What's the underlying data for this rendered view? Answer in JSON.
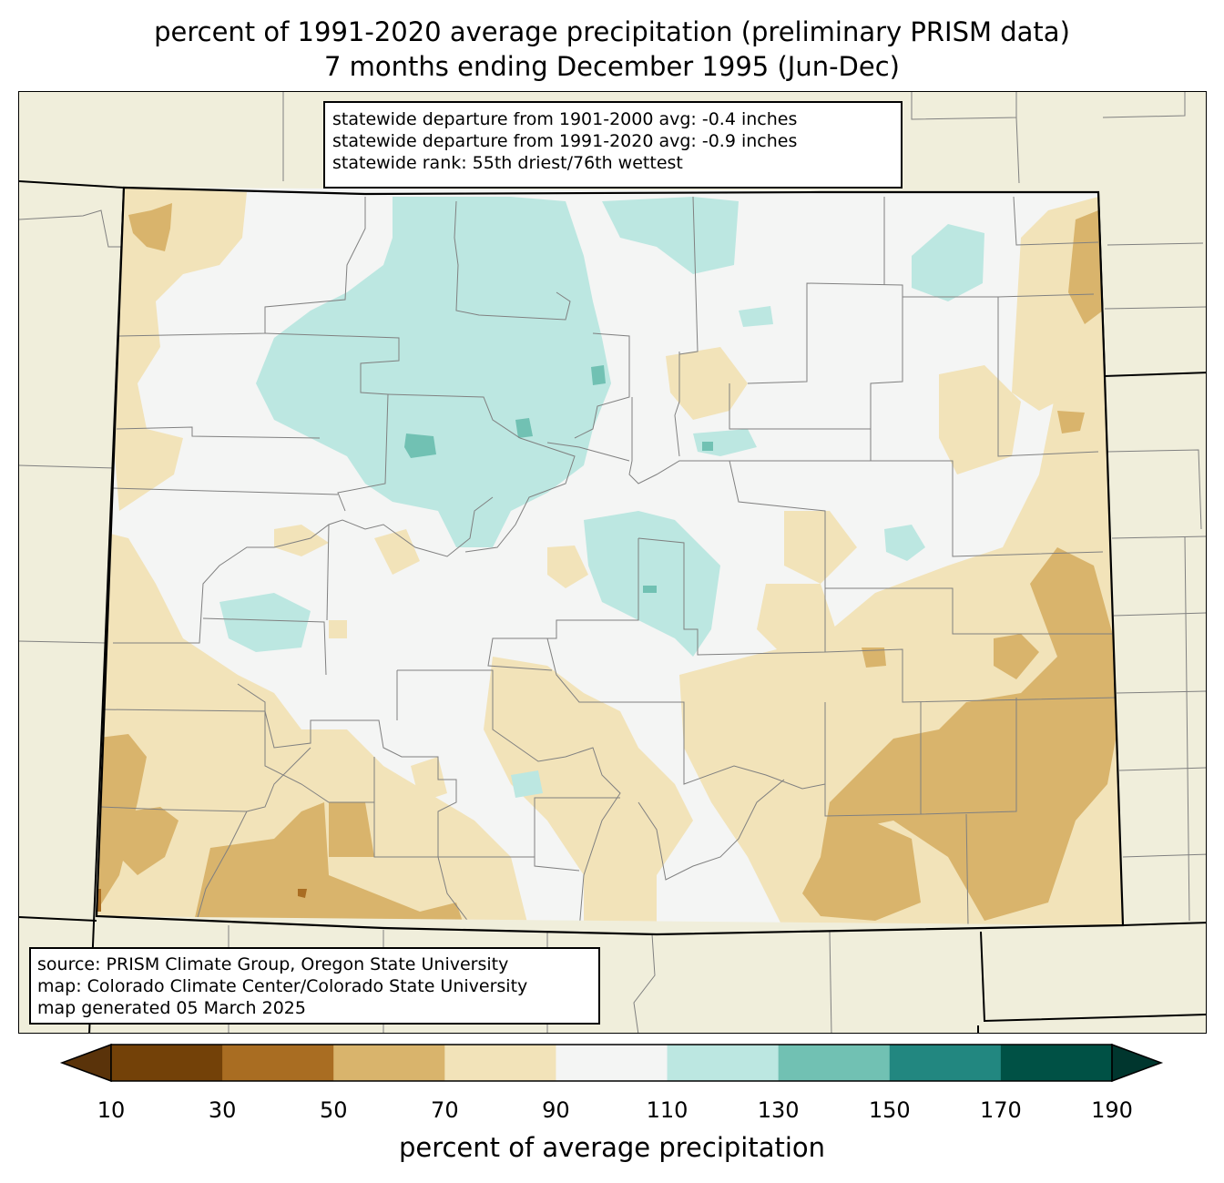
{
  "title": {
    "line1": "percent of 1991-2020 average precipitation (preliminary PRISM data)",
    "line2": "7 months ending December 1995 (Jun-Dec)"
  },
  "stats": {
    "line1": "statewide departure from 1901-2000 avg: -0.4 inches",
    "line2": "statewide departure from 1991-2020 avg: -0.9 inches",
    "line3": "statewide rank: 55th driest/76th wettest"
  },
  "source": {
    "line1": "source: PRISM Climate Group, Oregon State University",
    "line2": "map: Colorado Climate Center/Colorado State University",
    "line3": "map generated 05 March 2025"
  },
  "colorbar": {
    "label": "percent of average precipitation",
    "ticks": [
      "10",
      "30",
      "50",
      "70",
      "90",
      "110",
      "130",
      "150",
      "170",
      "190"
    ],
    "colors": [
      "#734108",
      "#a96d22",
      "#d9b46c",
      "#f2e3b9",
      "#f4f5f4",
      "#bce7e1",
      "#71c1b3",
      "#228780",
      "#005145"
    ],
    "under_color": "#5a330a",
    "over_color": "#00362e"
  },
  "map_colors": {
    "land": "#f0eedb",
    "near_normal": "#f4f5f4",
    "dry_light": "#f2e3b9",
    "dry_mid": "#d9b46c",
    "dry_dark": "#a96d22",
    "wet_light": "#bce7e1",
    "wet_mid": "#71c1b3"
  }
}
